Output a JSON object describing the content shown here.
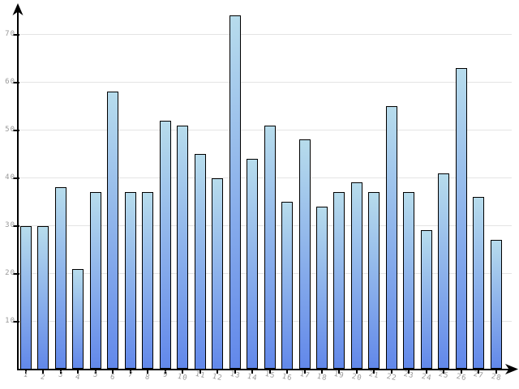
{
  "chart_data": {
    "type": "bar",
    "title": "",
    "xlabel": "",
    "ylabel": "",
    "categories": [
      "1",
      "2",
      "3",
      "4",
      "5",
      "6",
      "7",
      "8",
      "9",
      "10",
      "11",
      "12",
      "13",
      "14",
      "15",
      "16",
      "17",
      "18",
      "19",
      "20",
      "21",
      "22",
      "23",
      "24",
      "25",
      "26",
      "27",
      "28"
    ],
    "values": [
      30,
      30,
      38,
      21,
      37,
      58,
      37,
      37,
      52,
      51,
      45,
      40,
      74,
      44,
      51,
      35,
      48,
      34,
      37,
      39,
      37,
      55,
      37,
      29,
      41,
      63,
      36,
      27
    ],
    "yticks": [
      10,
      20,
      30,
      40,
      50,
      60,
      70
    ],
    "ylim": [
      0,
      76
    ],
    "grid": true,
    "legend_position": "none"
  },
  "colors": {
    "background": "#ffffff",
    "bar_gradient_top": "#b7dcec",
    "bar_gradient_bottom": "#6288ea",
    "bar_border": "#000000",
    "gridline": "#e4e4e4",
    "axis": "#000000",
    "tick_label": "#999999"
  }
}
